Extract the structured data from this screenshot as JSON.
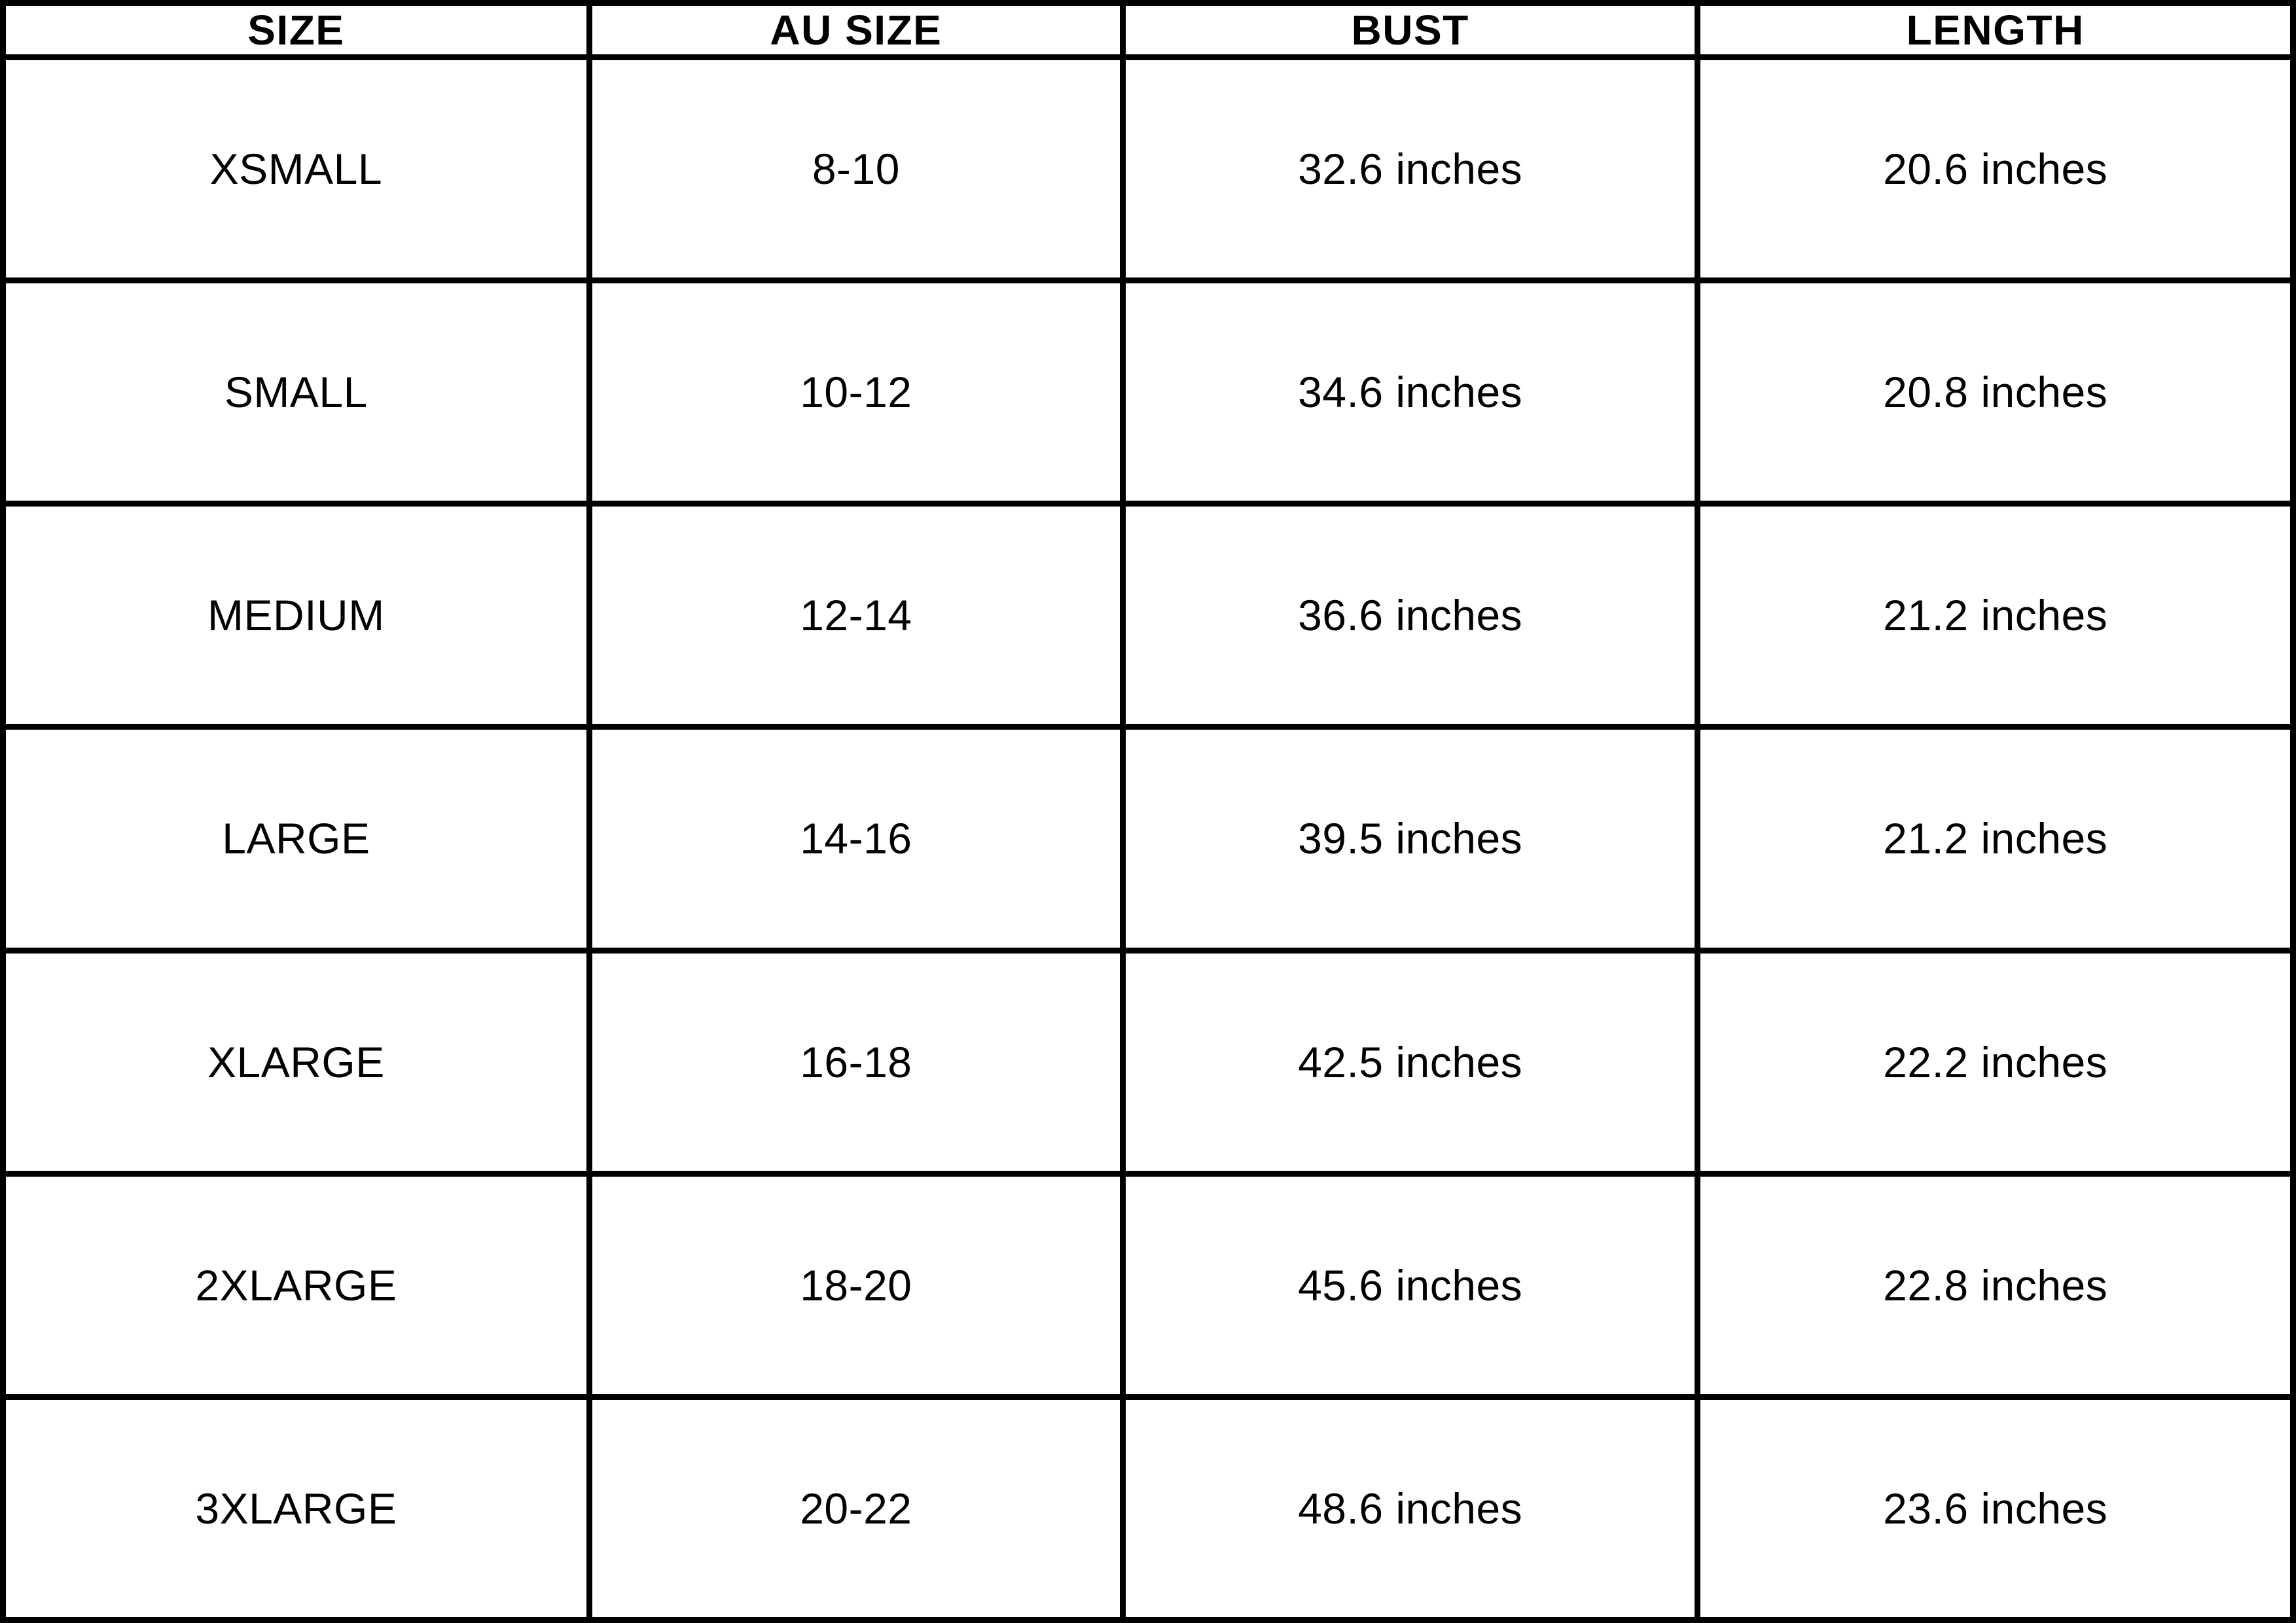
{
  "colors": {
    "background": "#ffffff",
    "border": "#000000",
    "text": "#000000"
  },
  "table": {
    "columns": [
      {
        "key": "size",
        "label": "SIZE"
      },
      {
        "key": "au_size",
        "label": "AU SIZE"
      },
      {
        "key": "bust",
        "label": "BUST"
      },
      {
        "key": "length",
        "label": "LENGTH"
      }
    ],
    "rows": [
      {
        "size": "XSMALL",
        "au_size": "8-10",
        "bust": "32.6 inches",
        "length": "20.6 inches"
      },
      {
        "size": "SMALL",
        "au_size": "10-12",
        "bust": "34.6 inches",
        "length": "20.8 inches"
      },
      {
        "size": "MEDIUM",
        "au_size": "12-14",
        "bust": "36.6 inches",
        "length": "21.2 inches"
      },
      {
        "size": "LARGE",
        "au_size": "14-16",
        "bust": "39.5 inches",
        "length": "21.2 inches"
      },
      {
        "size": "XLARGE",
        "au_size": "16-18",
        "bust": "42.5 inches",
        "length": "22.2 inches"
      },
      {
        "size": "2XLARGE",
        "au_size": "18-20",
        "bust": "45.6 inches",
        "length": "22.8 inches"
      },
      {
        "size": "3XLARGE",
        "au_size": "20-22",
        "bust": "48.6 inches",
        "length": "23.6 inches"
      }
    ]
  }
}
